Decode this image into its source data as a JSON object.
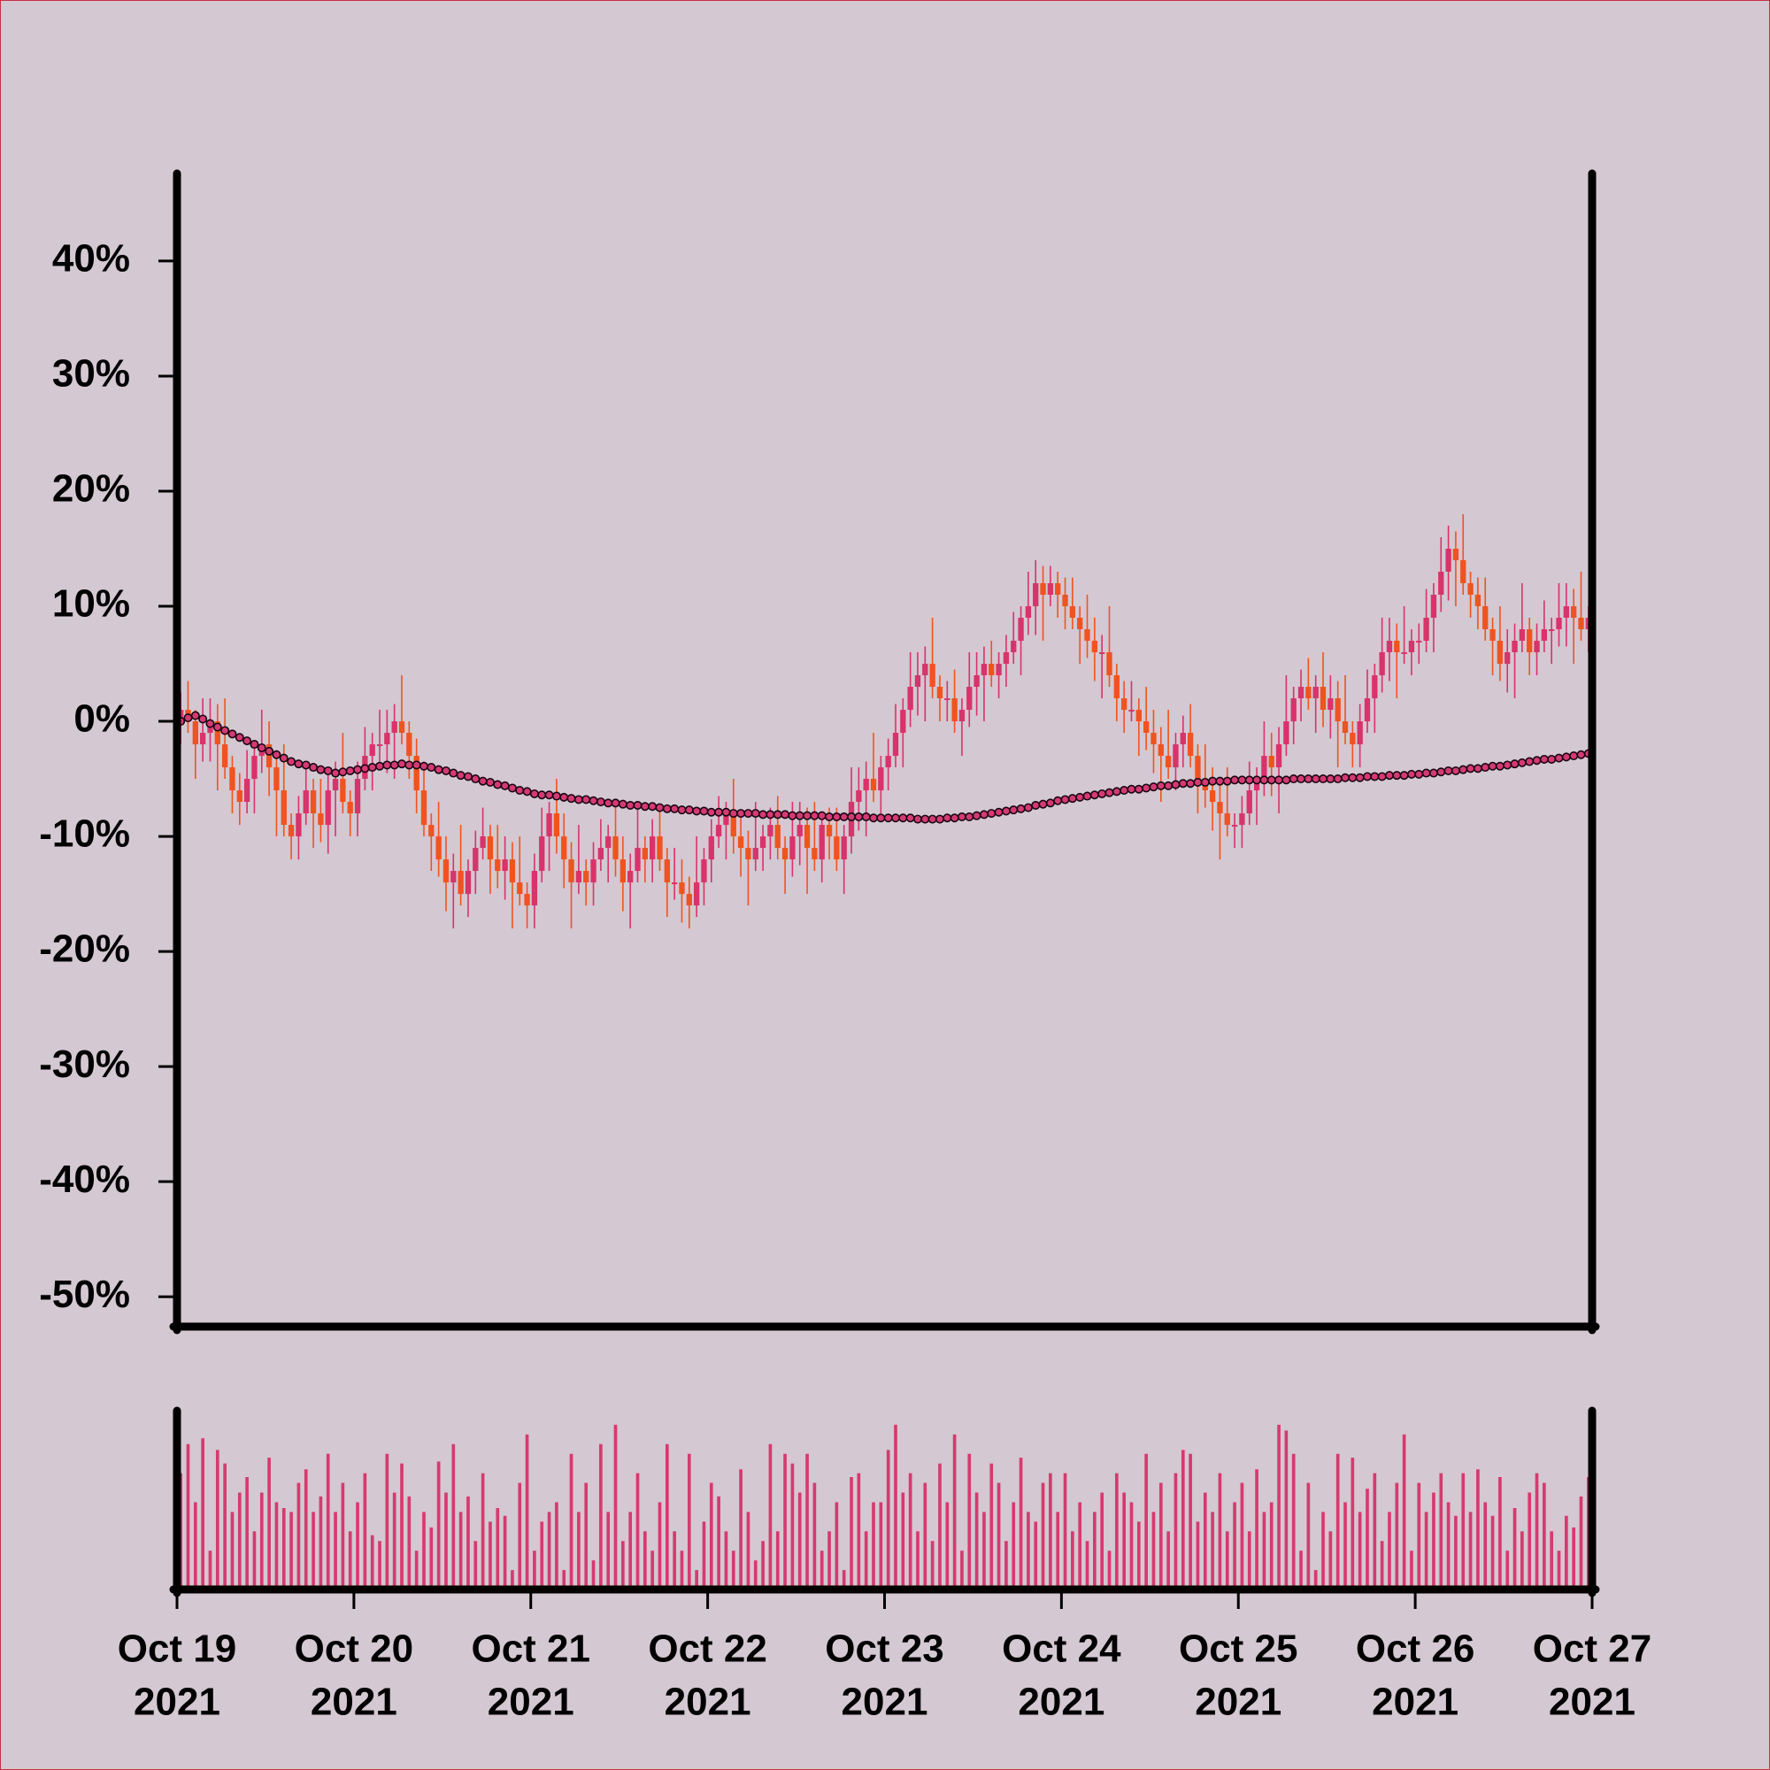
{
  "chart_data": [
    {
      "type": "candlestick",
      "up_color": "#d8336a",
      "down_color": "#f0531f",
      "open": [
        0,
        1,
        0,
        -2,
        -1,
        0,
        -2,
        -4,
        -6,
        -7,
        -5,
        -3,
        -2,
        -4,
        -6,
        -9,
        -10,
        -8,
        -6,
        -8,
        -9,
        -6,
        -5,
        -7,
        -8,
        -5,
        -3,
        -2,
        -2,
        -1,
        0,
        -1,
        -3,
        -6,
        -9,
        -10,
        -12,
        -14,
        -13,
        -15,
        -13,
        -11,
        -10,
        -12,
        -13,
        -12,
        -14,
        -15,
        -16,
        -13,
        -10,
        -8,
        -10,
        -12,
        -14,
        -13,
        -14,
        -12,
        -11,
        -10,
        -12,
        -14,
        -13,
        -11,
        -12,
        -10,
        -12,
        -14,
        -14,
        -15,
        -16,
        -14,
        -12,
        -10,
        -9,
        -8,
        -10,
        -11,
        -12,
        -11,
        -10,
        -9,
        -11,
        -12,
        -10,
        -9,
        -11,
        -12,
        -9,
        -10,
        -12,
        -10,
        -7,
        -6,
        -5,
        -6,
        -4,
        -3,
        -1,
        1,
        3,
        4,
        5,
        3,
        2,
        2,
        0,
        1,
        3,
        4,
        5,
        4,
        5,
        6,
        7,
        9,
        10,
        12,
        11,
        12,
        11,
        10,
        9,
        8,
        7,
        6,
        6,
        4,
        2,
        1,
        1,
        0,
        -1,
        -2,
        -3,
        -4,
        -2,
        -1,
        -3,
        -5,
        -6,
        -7,
        -8,
        -9,
        -9,
        -8,
        -6,
        -5,
        -3,
        -4,
        -2,
        0,
        2,
        3,
        2,
        3,
        1,
        2,
        0,
        -1,
        -2,
        0,
        2,
        4,
        6,
        7,
        6,
        6,
        7,
        7,
        9,
        11,
        13,
        15,
        14,
        12,
        11,
        10,
        8,
        7,
        5,
        6,
        7,
        8,
        6,
        7,
        8,
        8,
        9,
        10,
        9,
        8
      ],
      "high": [
        2.5,
        3.5,
        1,
        2,
        2,
        1.5,
        2,
        -3,
        -4.5,
        -2.5,
        -2,
        1,
        0,
        -2.5,
        -2,
        -8,
        -6.5,
        -3.5,
        -5,
        -5,
        -4,
        -3.5,
        -1,
        -6,
        -3.5,
        -0.5,
        -1,
        1,
        1,
        1.5,
        4,
        0,
        -1.5,
        -3.5,
        -8,
        -7,
        -10,
        -11.5,
        -9,
        -12,
        -9.5,
        -7.5,
        -9,
        -9,
        -10,
        -10.5,
        -10,
        -14,
        -11.5,
        -7.5,
        -7,
        -5,
        -8,
        -10.5,
        -9,
        -12,
        -10.5,
        -8.5,
        -9,
        -7,
        -10,
        -11.5,
        -7,
        -10,
        -8.5,
        -7.5,
        -11,
        -11,
        -12,
        -13.5,
        -10,
        -11,
        -8.5,
        -6.5,
        -7,
        -5,
        -8,
        -9.5,
        -7,
        -9,
        -7.5,
        -6.5,
        -10,
        -7,
        -7,
        -7.5,
        -7,
        -8,
        -7.5,
        -7.5,
        -9,
        -4,
        -4,
        -3.5,
        -1,
        -3,
        -1.5,
        1.5,
        2,
        6,
        6,
        6.5,
        9,
        4,
        3.5,
        4.5,
        2,
        6,
        6,
        6.5,
        7,
        6,
        7.5,
        9.5,
        10,
        13,
        14,
        13.5,
        13.5,
        13,
        12.5,
        12.5,
        10,
        11,
        9,
        7.5,
        10,
        5,
        3.5,
        3.5,
        2,
        3,
        1,
        -0.5,
        1,
        -1,
        0.5,
        1.5,
        -2,
        -2,
        -4,
        -5.5,
        -4,
        -8,
        -6.5,
        -3.5,
        -4,
        0,
        -1,
        -0.5,
        4,
        3,
        4.5,
        5.5,
        4,
        6,
        4,
        3.5,
        4,
        0,
        1.5,
        4.5,
        5,
        9,
        9,
        8.5,
        10,
        8,
        8.5,
        11.5,
        12,
        16,
        17,
        16.5,
        18,
        13,
        12.5,
        12.5,
        9,
        10,
        8,
        8.5,
        12,
        9,
        8.5,
        10.5,
        9,
        12,
        12,
        11.5,
        13,
        10
      ],
      "low": [
        -2,
        -1,
        -5,
        -3.5,
        -3.5,
        -6,
        -5,
        -8,
        -9,
        -8,
        -8,
        -4.5,
        -6.5,
        -10,
        -10,
        -12,
        -12,
        -9,
        -11,
        -10.5,
        -11.5,
        -10,
        -8,
        -10,
        -10,
        -6,
        -6,
        -3.5,
        -4.5,
        -5,
        -2,
        -5,
        -8,
        -10,
        -13,
        -13.5,
        -16.5,
        -18,
        -16,
        -17,
        -15,
        -12,
        -15,
        -14.5,
        -15.5,
        -18,
        -16,
        -18,
        -18,
        -14,
        -13,
        -11.5,
        -14.5,
        -18,
        -15,
        -16,
        -16,
        -13,
        -14,
        -13.5,
        -16.5,
        -18,
        -14,
        -14,
        -14,
        -13,
        -17,
        -15.5,
        -17.5,
        -18,
        -17,
        -16,
        -14,
        -11,
        -12,
        -11.5,
        -13.5,
        -16,
        -13,
        -13,
        -12,
        -12,
        -15,
        -13.5,
        -12.5,
        -15,
        -13,
        -14,
        -12,
        -13,
        -15,
        -11.5,
        -9.5,
        -10,
        -7,
        -8,
        -6,
        -4,
        -4,
        -0.5,
        0.5,
        0,
        2,
        0,
        0,
        -1,
        -3,
        -0.5,
        0.5,
        0,
        3,
        2,
        3,
        5,
        4,
        7.5,
        7.5,
        7,
        10,
        9,
        8,
        8,
        5,
        5.5,
        3.5,
        2,
        3,
        0,
        -1,
        0,
        -3,
        -2.5,
        -4.5,
        -7,
        -5,
        -6,
        -4,
        -4,
        -8,
        -7.5,
        -9.5,
        -12,
        -10,
        -11,
        -11,
        -9,
        -9,
        -6.5,
        -6.5,
        -8,
        -3,
        -2,
        0,
        1,
        -1,
        -0.5,
        -1.5,
        -4,
        -2,
        -4,
        -4,
        -1,
        -1,
        2.5,
        3.5,
        2,
        5,
        4,
        5,
        6,
        6,
        9.5,
        10.5,
        10,
        11,
        9,
        8,
        7,
        4,
        3.5,
        2.5,
        2,
        6,
        4,
        4,
        6,
        5,
        6.5,
        6.5,
        5,
        7,
        6
      ],
      "close": [
        1,
        0,
        -2,
        -1,
        0,
        -2,
        -4,
        -6,
        -7,
        -5,
        -3,
        -2,
        -4,
        -6,
        -9,
        -10,
        -8,
        -6,
        -8,
        -9,
        -6,
        -5,
        -7,
        -8,
        -5,
        -3,
        -2,
        -2,
        -1,
        0,
        -1,
        -3,
        -6,
        -9,
        -10,
        -12,
        -14,
        -13,
        -15,
        -13,
        -11,
        -10,
        -12,
        -13,
        -12,
        -14,
        -15,
        -16,
        -13,
        -10,
        -8,
        -10,
        -12,
        -14,
        -13,
        -14,
        -12,
        -11,
        -10,
        -12,
        -14,
        -13,
        -11,
        -12,
        -10,
        -12,
        -14,
        -14,
        -15,
        -16,
        -14,
        -12,
        -10,
        -9,
        -8,
        -10,
        -11,
        -12,
        -11,
        -10,
        -9,
        -11,
        -12,
        -10,
        -9,
        -11,
        -12,
        -9,
        -10,
        -12,
        -10,
        -7,
        -6,
        -5,
        -6,
        -4,
        -3,
        -1,
        1,
        3,
        4,
        5,
        3,
        2,
        2,
        0,
        1,
        3,
        4,
        5,
        4,
        5,
        6,
        7,
        9,
        10,
        12,
        11,
        12,
        11,
        10,
        9,
        8,
        7,
        6,
        6,
        4,
        2,
        1,
        1,
        0,
        -1,
        -2,
        -3,
        -4,
        -2,
        -1,
        -3,
        -5,
        -6,
        -7,
        -8,
        -9,
        -9,
        -8,
        -6,
        -5,
        -3,
        -4,
        -2,
        0,
        2,
        3,
        2,
        3,
        1,
        2,
        0,
        -1,
        -2,
        0,
        2,
        4,
        6,
        7,
        6,
        6,
        7,
        7,
        9,
        11,
        13,
        15,
        14,
        12,
        11,
        10,
        8,
        7,
        5,
        6,
        7,
        8,
        6,
        7,
        8,
        8,
        9,
        10,
        9,
        8,
        9
      ],
      "ma": {
        "color": "#d63a72",
        "edge_color": "#1a0612",
        "values": [
          0,
          0.3,
          0.5,
          0.2,
          -0.2,
          -0.5,
          -0.8,
          -1.1,
          -1.4,
          -1.7,
          -2.0,
          -2.3,
          -2.6,
          -2.9,
          -3.2,
          -3.5,
          -3.7,
          -3.8,
          -4.0,
          -4.2,
          -4.3,
          -4.5,
          -4.4,
          -4.3,
          -4.2,
          -4.1,
          -4.0,
          -3.9,
          -3.8,
          -3.8,
          -3.7,
          -3.8,
          -3.8,
          -3.9,
          -4.0,
          -4.2,
          -4.3,
          -4.5,
          -4.7,
          -4.8,
          -5.0,
          -5.2,
          -5.3,
          -5.5,
          -5.6,
          -5.8,
          -6.0,
          -6.1,
          -6.3,
          -6.4,
          -6.4,
          -6.5,
          -6.6,
          -6.7,
          -6.8,
          -6.8,
          -6.9,
          -7.0,
          -7.1,
          -7.1,
          -7.2,
          -7.3,
          -7.3,
          -7.4,
          -7.4,
          -7.5,
          -7.6,
          -7.6,
          -7.7,
          -7.7,
          -7.8,
          -7.8,
          -7.9,
          -7.9,
          -7.9,
          -8.0,
          -8.0,
          -8.0,
          -8.0,
          -8.1,
          -8.1,
          -8.1,
          -8.1,
          -8.2,
          -8.2,
          -8.2,
          -8.2,
          -8.2,
          -8.3,
          -8.3,
          -8.3,
          -8.3,
          -8.3,
          -8.3,
          -8.4,
          -8.4,
          -8.4,
          -8.4,
          -8.4,
          -8.4,
          -8.5,
          -8.5,
          -8.5,
          -8.5,
          -8.4,
          -8.4,
          -8.3,
          -8.3,
          -8.2,
          -8.1,
          -8.0,
          -7.9,
          -7.8,
          -7.7,
          -7.6,
          -7.5,
          -7.3,
          -7.2,
          -7.1,
          -6.9,
          -6.8,
          -6.7,
          -6.6,
          -6.5,
          -6.4,
          -6.3,
          -6.2,
          -6.1,
          -6.0,
          -5.9,
          -5.9,
          -5.8,
          -5.7,
          -5.6,
          -5.6,
          -5.5,
          -5.4,
          -5.4,
          -5.3,
          -5.3,
          -5.2,
          -5.2,
          -5.2,
          -5.1,
          -5.1,
          -5.1,
          -5.1,
          -5.1,
          -5.1,
          -5.1,
          -5.1,
          -5.0,
          -5.0,
          -5.0,
          -5.0,
          -5.0,
          -5.0,
          -5.0,
          -4.9,
          -4.9,
          -4.9,
          -4.8,
          -4.8,
          -4.8,
          -4.7,
          -4.7,
          -4.7,
          -4.6,
          -4.6,
          -4.5,
          -4.5,
          -4.4,
          -4.3,
          -4.3,
          -4.2,
          -4.1,
          -4.1,
          -4.0,
          -3.9,
          -3.9,
          -3.8,
          -3.7,
          -3.6,
          -3.5,
          -3.4,
          -3.3,
          -3.3,
          -3.2,
          -3.1,
          -3.0,
          -2.9,
          -2.8
        ]
      },
      "xlim": [
        "2021-10-19",
        "2021-10-27"
      ],
      "ylim": [
        -52.6,
        47.3
      ],
      "yticks": [
        {
          "value": 40,
          "label": "40%"
        },
        {
          "value": 30,
          "label": "30%"
        },
        {
          "value": 20,
          "label": "20%"
        },
        {
          "value": 10,
          "label": "10%"
        },
        {
          "value": 0,
          "label": "0%"
        },
        {
          "value": -10,
          "label": "-10%"
        },
        {
          "value": -20,
          "label": "-20%"
        },
        {
          "value": -30,
          "label": "-30%"
        },
        {
          "value": -40,
          "label": "-40%"
        },
        {
          "value": -50,
          "label": "-50%"
        }
      ]
    },
    {
      "type": "bar",
      "color": "#d63a6e",
      "values": [
        60,
        75,
        45,
        78,
        20,
        72,
        65,
        40,
        50,
        58,
        30,
        50,
        68,
        45,
        42,
        40,
        55,
        62,
        40,
        48,
        70,
        40,
        55,
        30,
        45,
        60,
        28,
        25,
        70,
        50,
        65,
        48,
        20,
        40,
        32,
        66,
        50,
        75,
        40,
        48,
        25,
        60,
        35,
        42,
        38,
        10,
        55,
        80,
        20,
        35,
        40,
        45,
        10,
        70,
        40,
        55,
        15,
        75,
        40,
        85,
        25,
        40,
        60,
        30,
        20,
        45,
        75,
        30,
        20,
        70,
        10,
        35,
        55,
        48,
        30,
        20,
        62,
        40,
        15,
        25,
        75,
        30,
        70,
        65,
        50,
        70,
        55,
        20,
        30,
        45,
        10,
        58,
        60,
        30,
        45,
        45,
        72,
        85,
        50,
        60,
        30,
        55,
        25,
        65,
        45,
        80,
        20,
        70,
        50,
        40,
        65,
        55,
        25,
        45,
        68,
        40,
        35,
        55,
        60,
        40,
        60,
        30,
        45,
        25,
        40,
        50,
        20,
        60,
        50,
        45,
        35,
        70,
        40,
        55,
        30,
        60,
        72,
        70,
        35,
        50,
        40,
        60,
        30,
        45,
        55,
        30,
        62,
        40,
        45,
        85,
        82,
        70,
        20,
        55,
        10,
        40,
        30,
        70,
        45,
        68,
        40,
        52,
        60,
        25,
        40,
        55,
        80,
        20,
        55,
        40,
        50,
        60,
        45,
        38,
        60,
        40,
        62,
        45,
        38,
        58,
        20,
        42,
        30,
        50,
        60,
        55,
        30,
        20,
        38,
        32,
        48,
        58
      ],
      "xlim": [
        "2021-10-19",
        "2021-10-27"
      ],
      "xticks": [
        {
          "value": "2021-10-19",
          "label": [
            "Oct 19",
            "2021"
          ]
        },
        {
          "value": "2021-10-20",
          "label": [
            "Oct 20",
            "2021"
          ]
        },
        {
          "value": "2021-10-21",
          "label": [
            "Oct 21",
            "2021"
          ]
        },
        {
          "value": "2021-10-22",
          "label": [
            "Oct 22",
            "2021"
          ]
        },
        {
          "value": "2021-10-23",
          "label": [
            "Oct 23",
            "2021"
          ]
        },
        {
          "value": "2021-10-24",
          "label": [
            "Oct 24",
            "2021"
          ]
        },
        {
          "value": "2021-10-25",
          "label": [
            "Oct 25",
            "2021"
          ]
        },
        {
          "value": "2021-10-26",
          "label": [
            "Oct 26",
            "2021"
          ]
        },
        {
          "value": "2021-10-27",
          "label": [
            "Oct 27",
            "2021"
          ]
        }
      ]
    }
  ]
}
